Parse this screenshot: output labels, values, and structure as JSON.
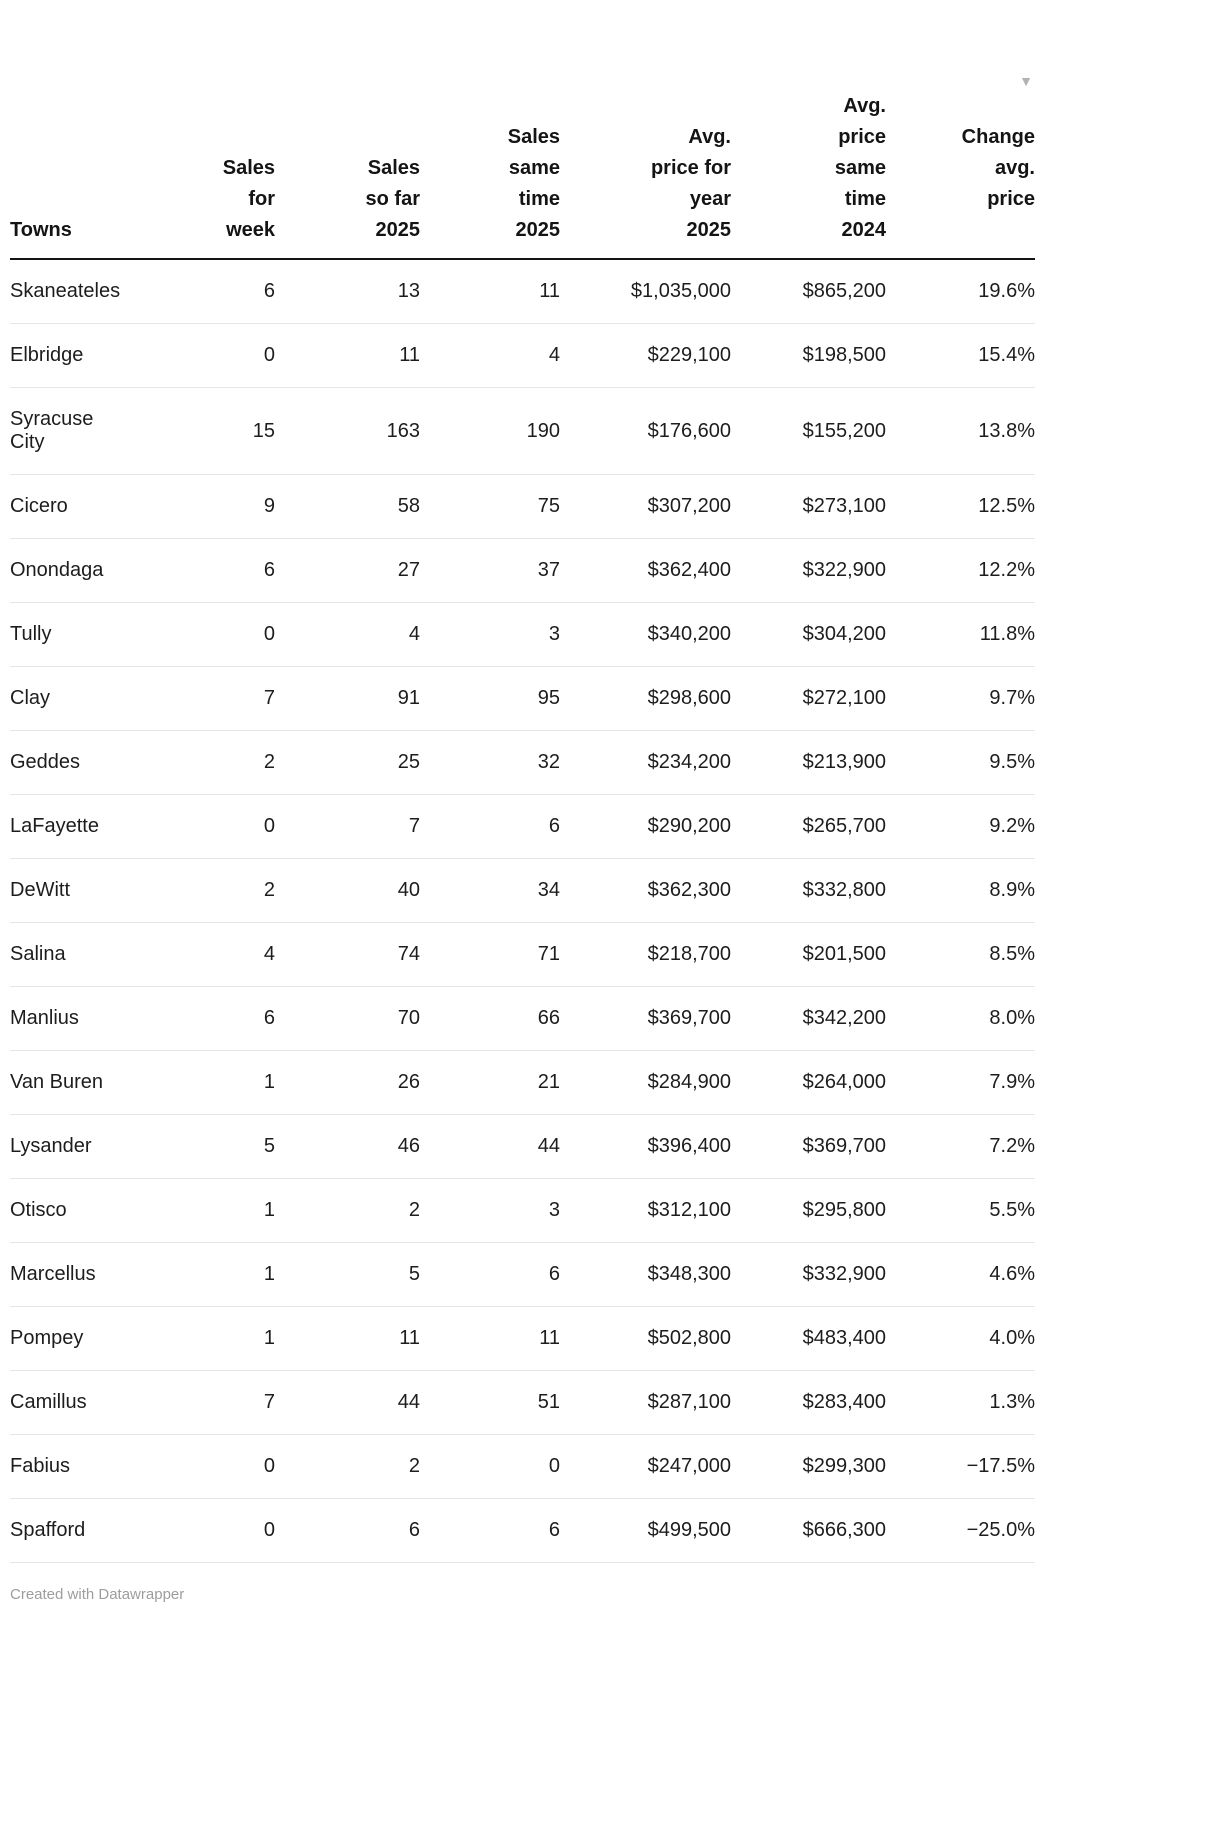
{
  "table": {
    "columns": [
      {
        "label": "Towns",
        "align": "left"
      },
      {
        "label": "Sales\nfor\nweek",
        "align": "right"
      },
      {
        "label": "Sales\nso far\n2025",
        "align": "right"
      },
      {
        "label": "Sales\nsame\ntime\n2025",
        "align": "right"
      },
      {
        "label": "Avg.\nprice for\nyear\n2025",
        "align": "right"
      },
      {
        "label": "Avg.\nprice\nsame\ntime\n2024",
        "align": "right"
      },
      {
        "label": "Change\navg.\nprice",
        "align": "right",
        "sort_indicator": "▼",
        "sorted": "descending"
      }
    ],
    "rows": [
      [
        "Skaneateles",
        "6",
        "13",
        "11",
        "$1,035,000",
        "$865,200",
        "19.6%"
      ],
      [
        "Elbridge",
        "0",
        "11",
        "4",
        "$229,100",
        "$198,500",
        "15.4%"
      ],
      [
        "Syracuse City",
        "15",
        "163",
        "190",
        "$176,600",
        "$155,200",
        "13.8%"
      ],
      [
        "Cicero",
        "9",
        "58",
        "75",
        "$307,200",
        "$273,100",
        "12.5%"
      ],
      [
        "Onondaga",
        "6",
        "27",
        "37",
        "$362,400",
        "$322,900",
        "12.2%"
      ],
      [
        "Tully",
        "0",
        "4",
        "3",
        "$340,200",
        "$304,200",
        "11.8%"
      ],
      [
        "Clay",
        "7",
        "91",
        "95",
        "$298,600",
        "$272,100",
        "9.7%"
      ],
      [
        "Geddes",
        "2",
        "25",
        "32",
        "$234,200",
        "$213,900",
        "9.5%"
      ],
      [
        "LaFayette",
        "0",
        "7",
        "6",
        "$290,200",
        "$265,700",
        "9.2%"
      ],
      [
        "DeWitt",
        "2",
        "40",
        "34",
        "$362,300",
        "$332,800",
        "8.9%"
      ],
      [
        "Salina",
        "4",
        "74",
        "71",
        "$218,700",
        "$201,500",
        "8.5%"
      ],
      [
        "Manlius",
        "6",
        "70",
        "66",
        "$369,700",
        "$342,200",
        "8.0%"
      ],
      [
        "Van Buren",
        "1",
        "26",
        "21",
        "$284,900",
        "$264,000",
        "7.9%"
      ],
      [
        "Lysander",
        "5",
        "46",
        "44",
        "$396,400",
        "$369,700",
        "7.2%"
      ],
      [
        "Otisco",
        "1",
        "2",
        "3",
        "$312,100",
        "$295,800",
        "5.5%"
      ],
      [
        "Marcellus",
        "1",
        "5",
        "6",
        "$348,300",
        "$332,900",
        "4.6%"
      ],
      [
        "Pompey",
        "1",
        "11",
        "11",
        "$502,800",
        "$483,400",
        "4.0%"
      ],
      [
        "Camillus",
        "7",
        "44",
        "51",
        "$287,100",
        "$283,400",
        "1.3%"
      ],
      [
        "Fabius",
        "0",
        "2",
        "0",
        "$247,000",
        "$299,300",
        "−17.5%"
      ],
      [
        "Spafford",
        "0",
        "6",
        "6",
        "$499,500",
        "$666,300",
        "−25.0%"
      ]
    ]
  },
  "footer": {
    "credit": "Created with Datawrapper"
  },
  "colors": {
    "header_text": "#141414",
    "body_text": "#1d1d1d",
    "header_rule": "#141414",
    "row_rule": "#e6e6e6",
    "footer_text": "#9d9d9d",
    "sort_icon": "#b3b3b3",
    "background": "#ffffff"
  },
  "chart_data": {
    "type": "table",
    "columns": [
      "Towns",
      "Sales for week",
      "Sales so far 2025",
      "Sales same time 2025",
      "Avg. price for year 2025",
      "Avg. price same time 2024",
      "Change avg. price"
    ],
    "rows": [
      [
        "Skaneateles",
        6,
        13,
        11,
        1035000,
        865200,
        19.6
      ],
      [
        "Elbridge",
        0,
        11,
        4,
        229100,
        198500,
        15.4
      ],
      [
        "Syracuse City",
        15,
        163,
        190,
        176600,
        155200,
        13.8
      ],
      [
        "Cicero",
        9,
        58,
        75,
        307200,
        273100,
        12.5
      ],
      [
        "Onondaga",
        6,
        27,
        37,
        362400,
        322900,
        12.2
      ],
      [
        "Tully",
        0,
        4,
        3,
        340200,
        304200,
        11.8
      ],
      [
        "Clay",
        7,
        91,
        95,
        298600,
        272100,
        9.7
      ],
      [
        "Geddes",
        2,
        25,
        32,
        234200,
        213900,
        9.5
      ],
      [
        "LaFayette",
        0,
        7,
        6,
        290200,
        265700,
        9.2
      ],
      [
        "DeWitt",
        2,
        40,
        34,
        362300,
        332800,
        8.9
      ],
      [
        "Salina",
        4,
        74,
        71,
        218700,
        201500,
        8.5
      ],
      [
        "Manlius",
        6,
        70,
        66,
        369700,
        342200,
        8.0
      ],
      [
        "Van Buren",
        1,
        26,
        21,
        284900,
        264000,
        7.9
      ],
      [
        "Lysander",
        5,
        46,
        44,
        396400,
        369700,
        7.2
      ],
      [
        "Otisco",
        1,
        2,
        3,
        312100,
        295800,
        5.5
      ],
      [
        "Marcellus",
        1,
        5,
        6,
        348300,
        332900,
        4.6
      ],
      [
        "Pompey",
        1,
        11,
        11,
        502800,
        483400,
        4.0
      ],
      [
        "Camillus",
        7,
        44,
        51,
        287100,
        283400,
        1.3
      ],
      [
        "Fabius",
        0,
        2,
        0,
        247000,
        299300,
        -17.5
      ],
      [
        "Spafford",
        0,
        6,
        6,
        499500,
        666300,
        -25.0
      ]
    ],
    "units": {
      "Avg. price for year 2025": "USD",
      "Avg. price same time 2024": "USD",
      "Change avg. price": "%"
    },
    "sort": {
      "column": "Change avg. price",
      "direction": "descending"
    },
    "credit": "Created with Datawrapper"
  }
}
